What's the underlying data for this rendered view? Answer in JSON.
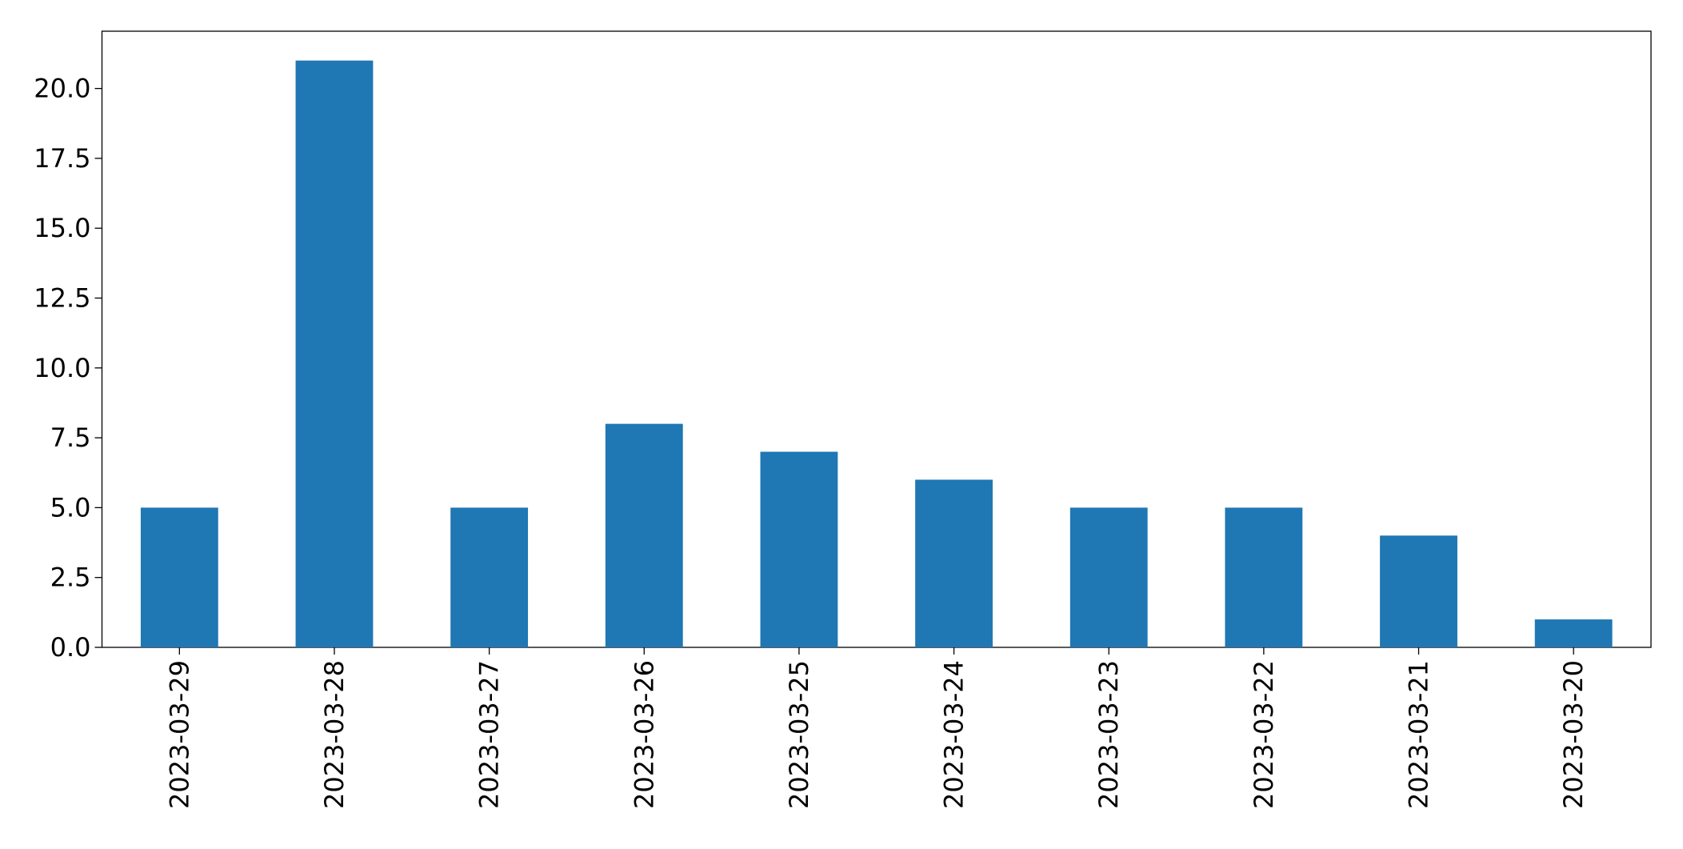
{
  "chart_data": {
    "type": "bar",
    "categories": [
      "2023-03-29",
      "2023-03-28",
      "2023-03-27",
      "2023-03-26",
      "2023-03-25",
      "2023-03-24",
      "2023-03-23",
      "2023-03-22",
      "2023-03-21",
      "2023-03-20"
    ],
    "values": [
      5,
      21,
      5,
      8,
      7,
      6,
      5,
      5,
      4,
      1
    ],
    "color": "#1f77b4",
    "ylim": [
      0,
      22.05
    ],
    "yticks": [
      {
        "value": 0,
        "label": "0.0"
      },
      2.5,
      {
        "value": 5,
        "label": "5.0"
      },
      7.5,
      {
        "value": 10,
        "label": "10.0"
      },
      12.5,
      {
        "value": 15,
        "label": "15.0"
      },
      17.5,
      {
        "value": 20,
        "label": "20.0"
      }
    ],
    "grid": false
  }
}
